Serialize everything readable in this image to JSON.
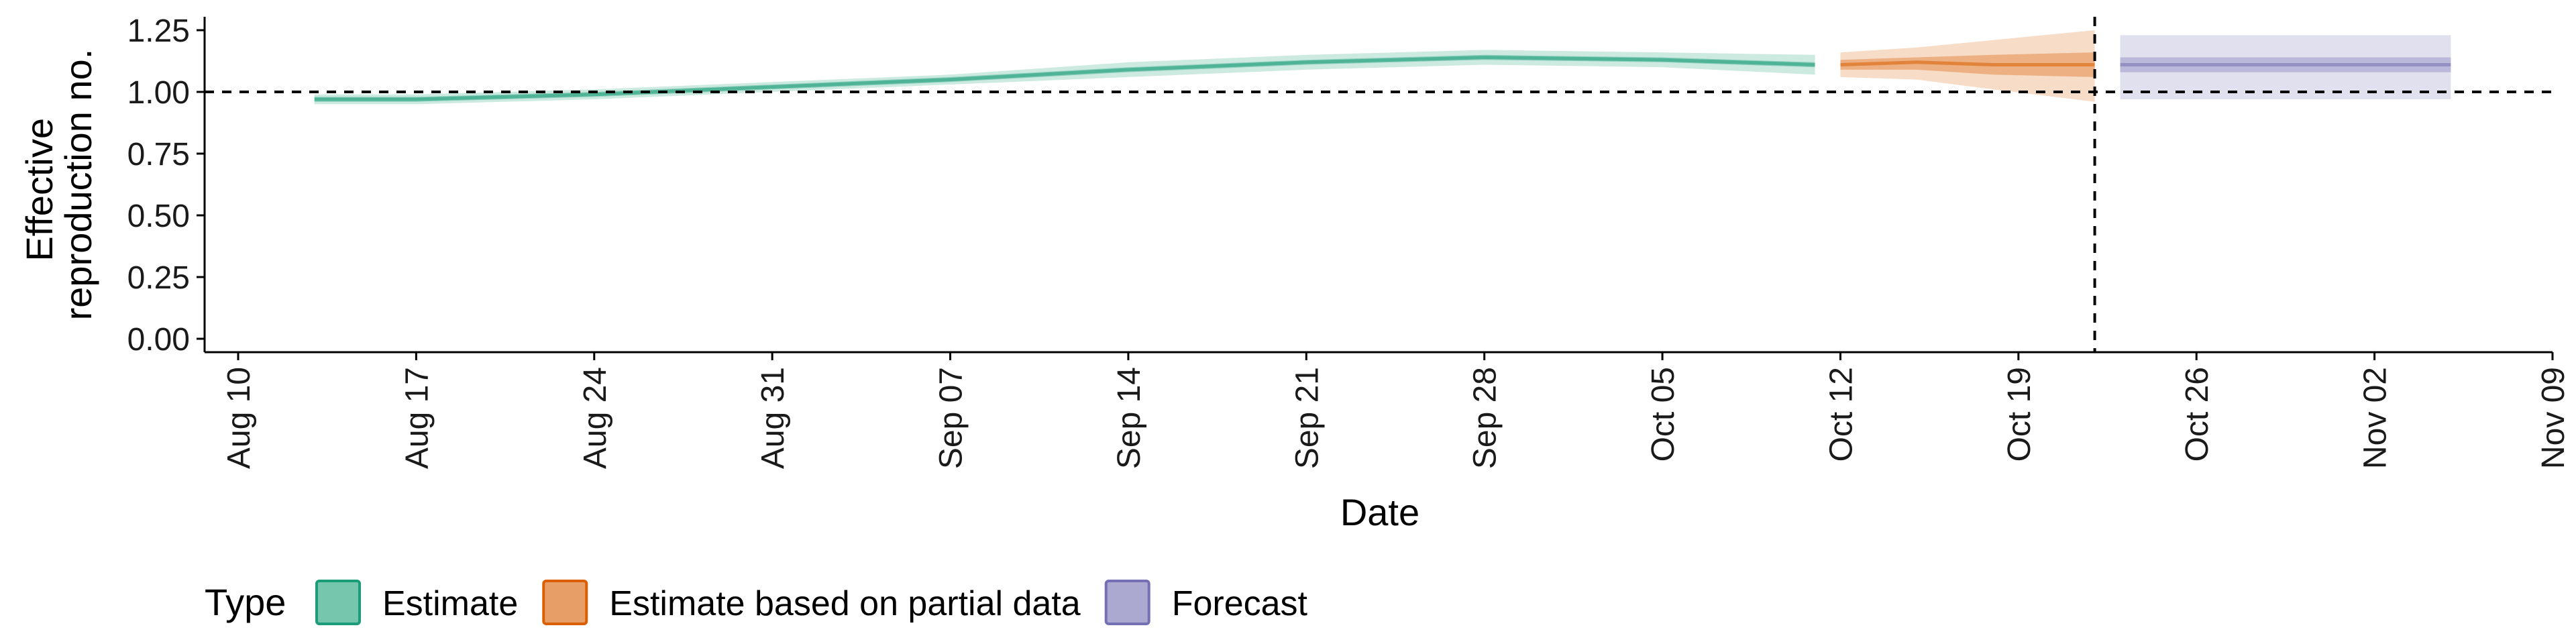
{
  "chart_data": {
    "type": "line",
    "xlabel": "Date",
    "ylabel_lines": [
      "Effective",
      "reproduction no."
    ],
    "ylim": [
      0,
      1.25
    ],
    "xlim": [
      "2020-08-10",
      "2020-11-09"
    ],
    "y_ticks": [
      "0.00",
      "0.25",
      "0.50",
      "0.75",
      "1.00",
      "1.25"
    ],
    "x_ticks": [
      {
        "date": "2020-08-10",
        "label": "Aug 10"
      },
      {
        "date": "2020-08-17",
        "label": "Aug 17"
      },
      {
        "date": "2020-08-24",
        "label": "Aug 24"
      },
      {
        "date": "2020-08-31",
        "label": "Aug 31"
      },
      {
        "date": "2020-09-07",
        "label": "Sep 07"
      },
      {
        "date": "2020-09-14",
        "label": "Sep 14"
      },
      {
        "date": "2020-09-21",
        "label": "Sep 21"
      },
      {
        "date": "2020-09-28",
        "label": "Sep 28"
      },
      {
        "date": "2020-10-05",
        "label": "Oct 05"
      },
      {
        "date": "2020-10-12",
        "label": "Oct 12"
      },
      {
        "date": "2020-10-19",
        "label": "Oct 19"
      },
      {
        "date": "2020-10-26",
        "label": "Oct 26"
      },
      {
        "date": "2020-11-02",
        "label": "Nov 02"
      },
      {
        "date": "2020-11-09",
        "label": "Nov 09"
      }
    ],
    "reference_lines": {
      "y": 1.0,
      "x": "2020-10-22"
    },
    "legend": {
      "title": "Type",
      "position": "bottom"
    },
    "grid": false,
    "series": [
      {
        "name": "Estimate",
        "color": "#1b9e77",
        "points": [
          {
            "date": "2020-08-13",
            "median": 0.97,
            "lo50": 0.96,
            "hi50": 0.98,
            "lo90": 0.95,
            "hi90": 0.99
          },
          {
            "date": "2020-08-17",
            "median": 0.97,
            "lo50": 0.96,
            "hi50": 0.98,
            "lo90": 0.95,
            "hi90": 0.99
          },
          {
            "date": "2020-08-24",
            "median": 0.99,
            "lo50": 0.98,
            "hi50": 1.0,
            "lo90": 0.97,
            "hi90": 1.01
          },
          {
            "date": "2020-08-31",
            "median": 1.02,
            "lo50": 1.01,
            "hi50": 1.03,
            "lo90": 1.0,
            "hi90": 1.04
          },
          {
            "date": "2020-09-07",
            "median": 1.05,
            "lo50": 1.04,
            "hi50": 1.06,
            "lo90": 1.03,
            "hi90": 1.07
          },
          {
            "date": "2020-09-14",
            "median": 1.09,
            "lo50": 1.08,
            "hi50": 1.1,
            "lo90": 1.06,
            "hi90": 1.12
          },
          {
            "date": "2020-09-21",
            "median": 1.12,
            "lo50": 1.11,
            "hi50": 1.13,
            "lo90": 1.09,
            "hi90": 1.15
          },
          {
            "date": "2020-09-28",
            "median": 1.14,
            "lo50": 1.13,
            "hi50": 1.15,
            "lo90": 1.11,
            "hi90": 1.17
          },
          {
            "date": "2020-10-05",
            "median": 1.13,
            "lo50": 1.12,
            "hi50": 1.14,
            "lo90": 1.1,
            "hi90": 1.16
          },
          {
            "date": "2020-10-11",
            "median": 1.11,
            "lo50": 1.1,
            "hi50": 1.12,
            "lo90": 1.07,
            "hi90": 1.15
          }
        ]
      },
      {
        "name": "Estimate based on partial data",
        "color": "#d95f02",
        "points": [
          {
            "date": "2020-10-12",
            "median": 1.11,
            "lo50": 1.09,
            "hi50": 1.13,
            "lo90": 1.06,
            "hi90": 1.16
          },
          {
            "date": "2020-10-15",
            "median": 1.12,
            "lo50": 1.09,
            "hi50": 1.14,
            "lo90": 1.05,
            "hi90": 1.18
          },
          {
            "date": "2020-10-18",
            "median": 1.11,
            "lo50": 1.07,
            "hi50": 1.15,
            "lo90": 1.01,
            "hi90": 1.21
          },
          {
            "date": "2020-10-22",
            "median": 1.11,
            "lo50": 1.06,
            "hi50": 1.16,
            "lo90": 0.96,
            "hi90": 1.25
          }
        ]
      },
      {
        "name": "Forecast",
        "color": "#7570b3",
        "points": [
          {
            "date": "2020-10-23",
            "median": 1.11,
            "lo50": 1.08,
            "hi50": 1.14,
            "lo90": 0.97,
            "hi90": 1.23
          },
          {
            "date": "2020-11-05",
            "median": 1.11,
            "lo50": 1.08,
            "hi50": 1.14,
            "lo90": 0.97,
            "hi90": 1.23
          }
        ]
      }
    ]
  }
}
